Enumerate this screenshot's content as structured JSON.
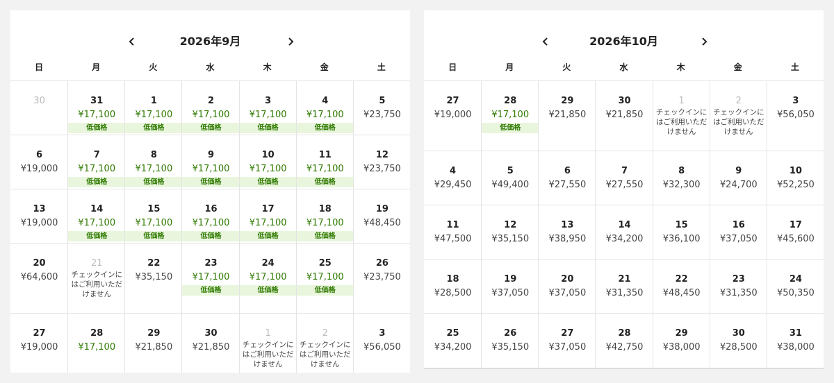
{
  "calendars": [
    {
      "title": "2026年9月",
      "weekdays": [
        "日",
        "月",
        "火",
        "水",
        "木",
        "金",
        "土"
      ],
      "weeks": [
        [
          {
            "day": 30,
            "muted": true
          },
          {
            "day": 31,
            "price": "¥17,100",
            "low": true,
            "badge": "低価格"
          },
          {
            "day": 1,
            "price": "¥17,100",
            "low": true,
            "badge": "低価格"
          },
          {
            "day": 2,
            "price": "¥17,100",
            "low": true,
            "badge": "低価格"
          },
          {
            "day": 3,
            "price": "¥17,100",
            "low": true,
            "badge": "低価格"
          },
          {
            "day": 4,
            "price": "¥17,100",
            "low": true,
            "badge": "低価格"
          },
          {
            "day": 5,
            "price": "¥23,750"
          }
        ],
        [
          {
            "day": 6,
            "price": "¥19,000"
          },
          {
            "day": 7,
            "price": "¥17,100",
            "low": true,
            "badge": "低価格"
          },
          {
            "day": 8,
            "price": "¥17,100",
            "low": true,
            "badge": "低価格"
          },
          {
            "day": 9,
            "price": "¥17,100",
            "low": true,
            "badge": "低価格"
          },
          {
            "day": 10,
            "price": "¥17,100",
            "low": true,
            "badge": "低価格"
          },
          {
            "day": 11,
            "price": "¥17,100",
            "low": true,
            "badge": "低価格"
          },
          {
            "day": 12,
            "price": "¥23,750"
          }
        ],
        [
          {
            "day": 13,
            "price": "¥19,000"
          },
          {
            "day": 14,
            "price": "¥17,100",
            "low": true,
            "badge": "低価格"
          },
          {
            "day": 15,
            "price": "¥17,100",
            "low": true,
            "badge": "低価格"
          },
          {
            "day": 16,
            "price": "¥17,100",
            "low": true,
            "badge": "低価格"
          },
          {
            "day": 17,
            "price": "¥17,100",
            "low": true,
            "badge": "低価格"
          },
          {
            "day": 18,
            "price": "¥17,100",
            "low": true,
            "badge": "低価格"
          },
          {
            "day": 19,
            "price": "¥48,450"
          }
        ],
        [
          {
            "day": 20,
            "price": "¥64,600"
          },
          {
            "day": 21,
            "muted": true,
            "note": "チェックインにはご利用いただけません"
          },
          {
            "day": 22,
            "price": "¥35,150"
          },
          {
            "day": 23,
            "price": "¥17,100",
            "low": true,
            "badge": "低価格"
          },
          {
            "day": 24,
            "price": "¥17,100",
            "low": true,
            "badge": "低価格"
          },
          {
            "day": 25,
            "price": "¥17,100",
            "low": true,
            "badge": "低価格"
          },
          {
            "day": 26,
            "price": "¥23,750"
          }
        ],
        [
          {
            "day": 27,
            "price": "¥19,000"
          },
          {
            "day": 28,
            "price": "¥17,100",
            "low": true
          },
          {
            "day": 29,
            "price": "¥21,850"
          },
          {
            "day": 30,
            "price": "¥21,850"
          },
          {
            "day": 1,
            "muted": true,
            "note": "チェックインにはご利用いただけません"
          },
          {
            "day": 2,
            "muted": true,
            "note": "チェックインにはご利用いただけません"
          },
          {
            "day": 3,
            "price": "¥56,050"
          }
        ]
      ]
    },
    {
      "title": "2026年10月",
      "weekdays": [
        "日",
        "月",
        "火",
        "水",
        "木",
        "金",
        "土"
      ],
      "weeks": [
        [
          {
            "day": 27,
            "price": "¥19,000"
          },
          {
            "day": 28,
            "price": "¥17,100",
            "low": true,
            "badge": "低価格"
          },
          {
            "day": 29,
            "price": "¥21,850"
          },
          {
            "day": 30,
            "price": "¥21,850"
          },
          {
            "day": 1,
            "muted": true,
            "note": "チェックインにはご利用いただけません"
          },
          {
            "day": 2,
            "muted": true,
            "note": "チェックインにはご利用いただけません"
          },
          {
            "day": 3,
            "price": "¥56,050"
          }
        ],
        [
          {
            "day": 4,
            "price": "¥29,450"
          },
          {
            "day": 5,
            "price": "¥49,400"
          },
          {
            "day": 6,
            "price": "¥27,550"
          },
          {
            "day": 7,
            "price": "¥27,550"
          },
          {
            "day": 8,
            "price": "¥32,300"
          },
          {
            "day": 9,
            "price": "¥24,700"
          },
          {
            "day": 10,
            "price": "¥52,250"
          }
        ],
        [
          {
            "day": 11,
            "price": "¥47,500"
          },
          {
            "day": 12,
            "price": "¥35,150"
          },
          {
            "day": 13,
            "price": "¥38,950"
          },
          {
            "day": 14,
            "price": "¥34,200"
          },
          {
            "day": 15,
            "price": "¥36,100"
          },
          {
            "day": 16,
            "price": "¥37,050"
          },
          {
            "day": 17,
            "price": "¥45,600"
          }
        ],
        [
          {
            "day": 18,
            "price": "¥28,500"
          },
          {
            "day": 19,
            "price": "¥37,050"
          },
          {
            "day": 20,
            "price": "¥37,050"
          },
          {
            "day": 21,
            "price": "¥31,350"
          },
          {
            "day": 22,
            "price": "¥48,450"
          },
          {
            "day": 23,
            "price": "¥31,350"
          },
          {
            "day": 24,
            "price": "¥50,350"
          }
        ],
        [
          {
            "day": 25,
            "price": "¥34,200"
          },
          {
            "day": 26,
            "price": "¥35,150"
          },
          {
            "day": 27,
            "price": "¥37,050"
          },
          {
            "day": 28,
            "price": "¥42,750"
          },
          {
            "day": 29,
            "price": "¥38,000"
          },
          {
            "day": 30,
            "price": "¥28,500"
          },
          {
            "day": 31,
            "price": "¥38,000"
          }
        ]
      ]
    }
  ]
}
